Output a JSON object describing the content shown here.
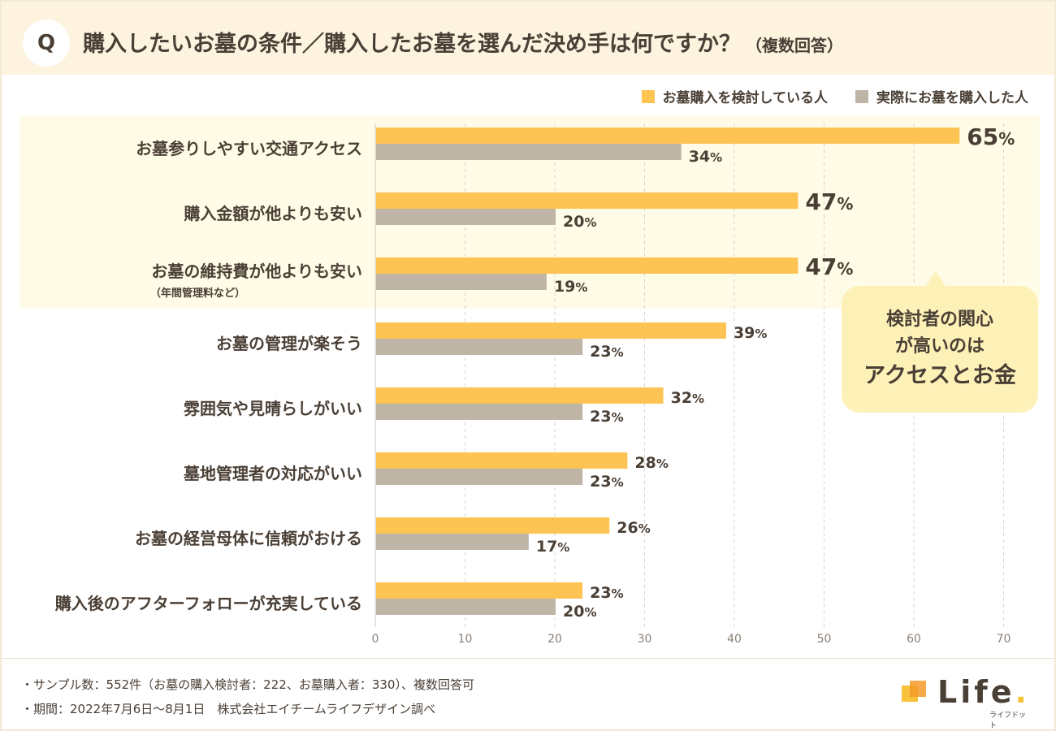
{
  "header": {
    "badge": "Q",
    "title": "購入したいお墓の条件／購入したお墓を選んだ決め手は何ですか？",
    "title_note": "（複数回答）"
  },
  "legend": [
    {
      "label": "お墓購入を検討している人",
      "color": "#fdc453"
    },
    {
      "label": "実際にお墓を購入した人",
      "color": "#bfb5a7"
    }
  ],
  "callout": {
    "line1": "検討者の関心",
    "line2": "が高いのは",
    "line3": "アクセスとお金"
  },
  "chart_data": {
    "type": "bar",
    "orientation": "horizontal",
    "xlim": [
      0,
      70
    ],
    "xticks": [
      0,
      10,
      20,
      30,
      40,
      50,
      60,
      70
    ],
    "categories": [
      {
        "label": "お墓参りしやすい交通アクセス",
        "sublabel": ""
      },
      {
        "label": "購入金額が他よりも安い",
        "sublabel": ""
      },
      {
        "label": "お墓の維持費が他よりも安い",
        "sublabel": "（年間管理料など）"
      },
      {
        "label": "お墓の管理が楽そう",
        "sublabel": ""
      },
      {
        "label": "雰囲気や見晴らしがいい",
        "sublabel": ""
      },
      {
        "label": "墓地管理者の対応がいい",
        "sublabel": ""
      },
      {
        "label": "お墓の経営母体に信頼がおける",
        "sublabel": ""
      },
      {
        "label": "購入後のアフターフォローが充実している",
        "sublabel": ""
      }
    ],
    "series": [
      {
        "name": "お墓購入を検討している人",
        "color": "#fdc453",
        "values": [
          65,
          47,
          47,
          39,
          32,
          28,
          26,
          23
        ]
      },
      {
        "name": "実際にお墓を購入した人",
        "color": "#bfb5a7",
        "values": [
          34,
          20,
          19,
          23,
          23,
          23,
          17,
          20
        ]
      }
    ],
    "value_suffix": "%",
    "highlight_top_n": 3
  },
  "notes": [
    "・サンプル数：552件（お墓の購入検討者：222、お墓購入者：330）、複数回答可",
    "・期間：2022年7月6日〜8月1日　株式会社エイチームライフデザイン調べ"
  ],
  "logo": {
    "text": "Life",
    "dot": ".",
    "sub": "ライフドット"
  }
}
